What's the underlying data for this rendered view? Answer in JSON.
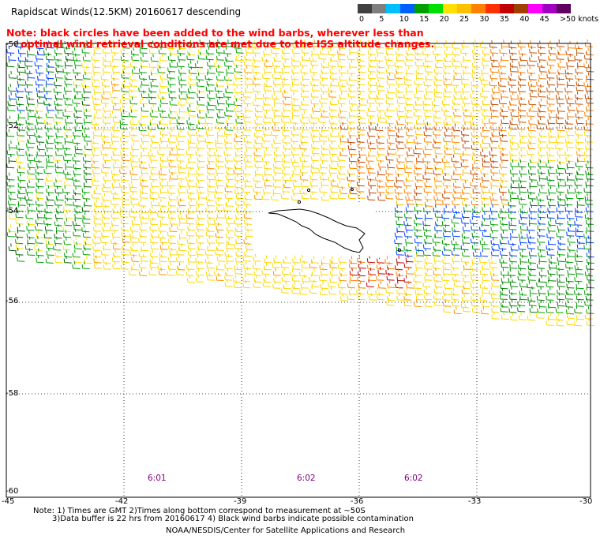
{
  "header": {
    "title": "Rapidscat Winds(12.5KM) 20160617 descending"
  },
  "note": {
    "line1": "Note: black circles have been added to the wind barbs, wherever less than",
    "line2": "optimal wind retrieval conditions are met due to the ISS altitude changes."
  },
  "legend": {
    "colors": [
      "#404040",
      "#7f7f7f",
      "#00bfff",
      "#0060ff",
      "#00a000",
      "#00e000",
      "#ffe000",
      "#ffc000",
      "#ff8000",
      "#ff3000",
      "#c00000",
      "#a04000",
      "#ff00ff",
      "#a000c0",
      "#600060"
    ],
    "labels": [
      {
        "text": "0",
        "pos": 0
      },
      {
        "text": "5",
        "pos": 2
      },
      {
        "text": "10",
        "pos": 4
      },
      {
        "text": "15",
        "pos": 6
      },
      {
        "text": "20",
        "pos": 8
      },
      {
        "text": "25",
        "pos": 10
      },
      {
        "text": "30",
        "pos": 12
      },
      {
        "text": "35",
        "pos": 14
      },
      {
        "text": "40",
        "pos": 16
      },
      {
        "text": "45",
        "pos": 18
      },
      {
        "text": ">50 knots",
        "pos": 20
      }
    ]
  },
  "map": {
    "lat_labels": [
      "-50",
      "-52",
      "-54",
      "-56",
      "-58",
      "-60"
    ],
    "lon_labels": [
      "-45",
      "-42",
      "-39",
      "-36",
      "-33",
      "-30"
    ],
    "time_labels": [
      "6:01",
      "6:02",
      "6:02"
    ],
    "coast_color": "#000000"
  },
  "footer": {
    "line1": "Note: 1) Times are GMT 2)Times along bottom correspond to measurement at ~50S",
    "line2": "3)Data buffer is 22 hrs from 20160617 4) Black wind barbs indicate possible contamination",
    "line3": "NOAA/NESDIS/Center for Satellite Applications and Research"
  }
}
